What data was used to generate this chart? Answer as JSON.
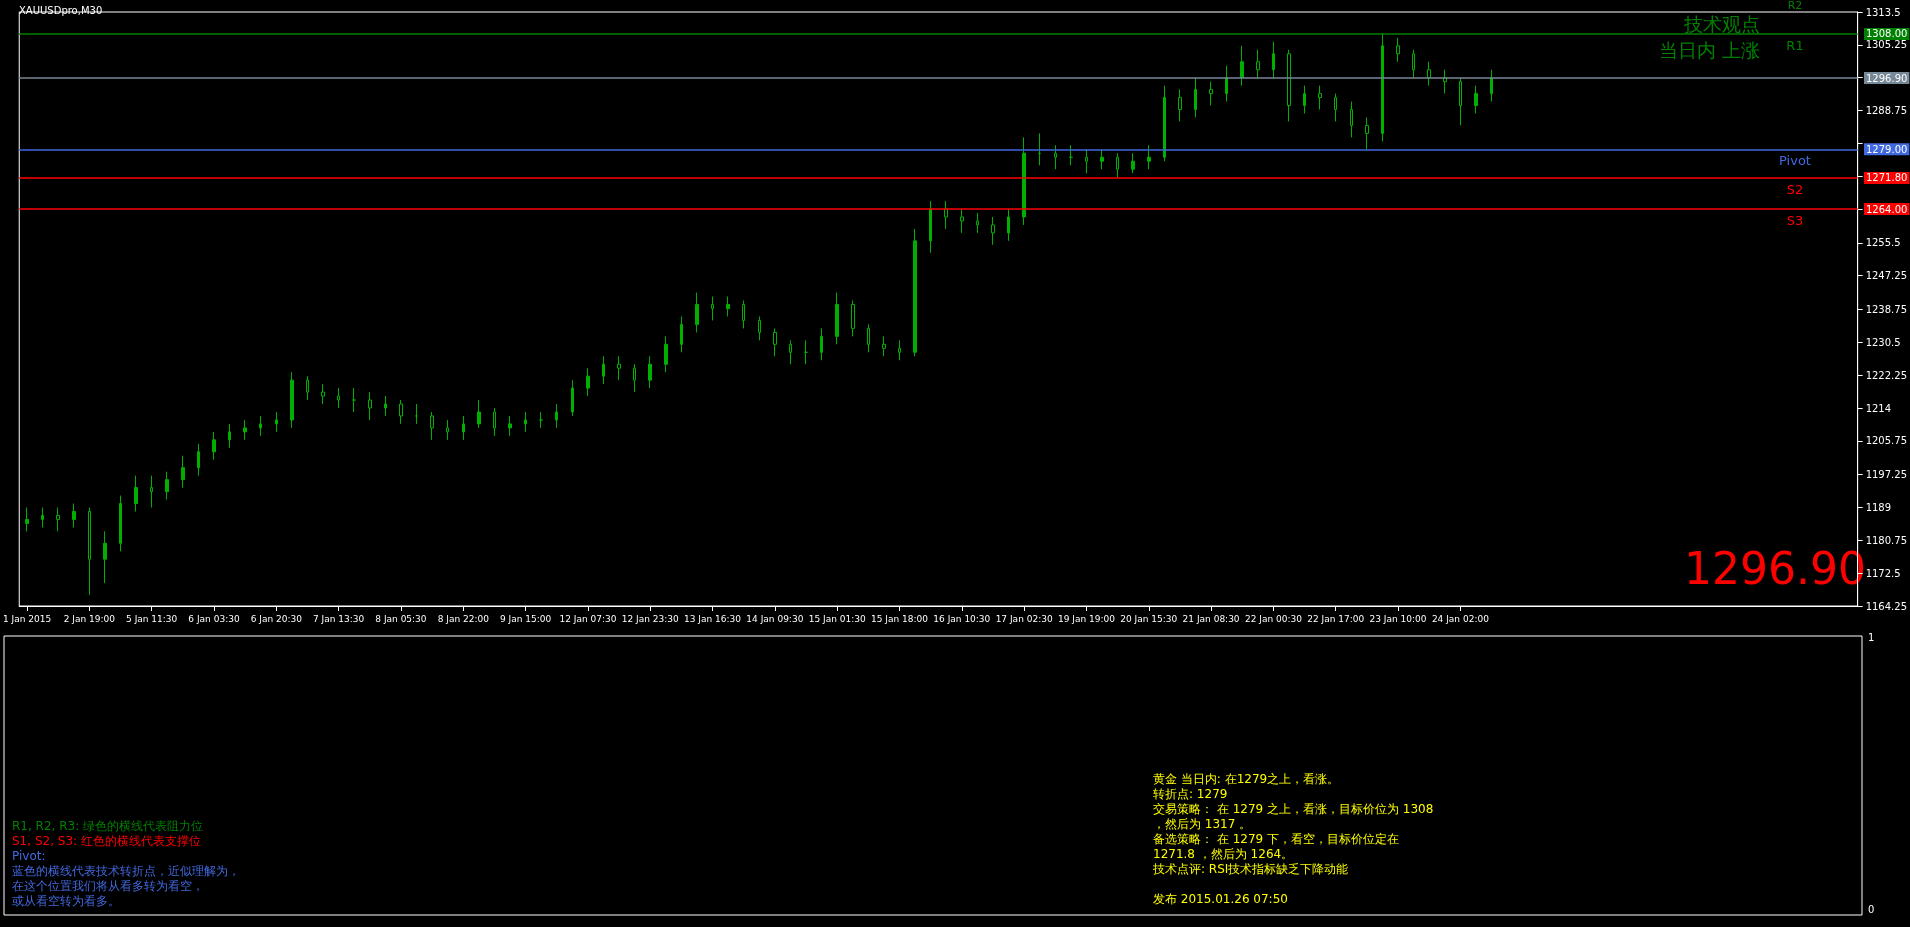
{
  "chart_data": [
    {
      "type": "candlestick",
      "title": "XAUUSDpro,M30",
      "color": "#00b000",
      "categories": [
        "1 Jan 2015",
        null,
        null,
        null,
        "2 Jan 19:00",
        null,
        null,
        null,
        "5 Jan 11:30",
        null,
        null,
        null,
        "6 Jan 03:30",
        null,
        null,
        null,
        "6 Jan 20:30",
        null,
        null,
        null,
        "7 Jan 13:30",
        null,
        null,
        null,
        "8 Jan 05:30",
        null,
        null,
        null,
        "8 Jan 22:00",
        null,
        null,
        null,
        "9 Jan 15:00",
        null,
        null,
        null,
        "12 Jan 07:30",
        null,
        null,
        null,
        "12 Jan 23:30",
        null,
        null,
        null,
        "13 Jan 16:30",
        null,
        null,
        null,
        "14 Jan 09:30",
        null,
        null,
        null,
        "15 Jan 01:30",
        null,
        null,
        null,
        "15 Jan 18:00",
        null,
        null,
        null,
        "16 Jan 10:30",
        null,
        null,
        null,
        "17 Jan 02:30",
        null,
        null,
        null,
        "19 Jan 19:00",
        null,
        null,
        null,
        "20 Jan 15:30",
        null,
        null,
        null,
        "21 Jan 08:30",
        null,
        null,
        null,
        "22 Jan 00:30",
        null,
        null,
        null,
        "22 Jan 17:00",
        null,
        null,
        null,
        "23 Jan 10:00",
        null,
        null,
        null,
        "24 Jan 02:00",
        null,
        null,
        null,
        null,
        null,
        null,
        null,
        null,
        null,
        null,
        null,
        null,
        null,
        null,
        null,
        null,
        null,
        null,
        null,
        null,
        null,
        null,
        null,
        null,
        null
      ],
      "ohlc": [
        [
          1185,
          1189,
          1183,
          1186
        ],
        [
          1186,
          1189,
          1184,
          1187
        ],
        [
          1187,
          1189,
          1183,
          1186
        ],
        [
          1186,
          1190,
          1184,
          1188
        ],
        [
          1188,
          1189,
          1167,
          1176
        ],
        [
          1176,
          1183,
          1170,
          1180
        ],
        [
          1180,
          1192,
          1178,
          1190
        ],
        [
          1190,
          1197,
          1188,
          1194
        ],
        [
          1194,
          1197,
          1189,
          1193
        ],
        [
          1193,
          1198,
          1191,
          1196
        ],
        [
          1196,
          1202,
          1194,
          1199
        ],
        [
          1199,
          1205,
          1197,
          1203
        ],
        [
          1203,
          1208,
          1201,
          1206
        ],
        [
          1206,
          1210,
          1204,
          1208
        ],
        [
          1208,
          1211,
          1206,
          1209
        ],
        [
          1209,
          1212,
          1207,
          1210
        ],
        [
          1210,
          1213,
          1208,
          1211
        ],
        [
          1211,
          1223,
          1209,
          1221
        ],
        [
          1221,
          1222,
          1216,
          1218
        ],
        [
          1218,
          1220,
          1215,
          1217
        ],
        [
          1217,
          1219,
          1214,
          1216
        ],
        [
          1216,
          1219,
          1213,
          1216
        ],
        [
          1216,
          1218,
          1211,
          1214
        ],
        [
          1214,
          1217,
          1212,
          1215
        ],
        [
          1215,
          1216,
          1210,
          1212
        ],
        [
          1212,
          1215,
          1210,
          1212
        ],
        [
          1212,
          1213,
          1206,
          1209
        ],
        [
          1209,
          1211,
          1206,
          1208
        ],
        [
          1208,
          1212,
          1206,
          1210
        ],
        [
          1210,
          1216,
          1209,
          1213
        ],
        [
          1213,
          1214,
          1207,
          1209
        ],
        [
          1209,
          1212,
          1207,
          1210
        ],
        [
          1210,
          1213,
          1208,
          1211
        ],
        [
          1211,
          1213,
          1209,
          1211
        ],
        [
          1211,
          1215,
          1209,
          1213
        ],
        [
          1213,
          1221,
          1212,
          1219
        ],
        [
          1219,
          1224,
          1217,
          1222
        ],
        [
          1222,
          1227,
          1220,
          1225
        ],
        [
          1225,
          1227,
          1221,
          1224
        ],
        [
          1224,
          1225,
          1218,
          1221
        ],
        [
          1221,
          1227,
          1219,
          1225
        ],
        [
          1225,
          1232,
          1223,
          1230
        ],
        [
          1230,
          1237,
          1228,
          1235
        ],
        [
          1235,
          1243,
          1233,
          1240
        ],
        [
          1240,
          1242,
          1236,
          1239
        ],
        [
          1239,
          1242,
          1237,
          1240
        ],
        [
          1240,
          1241,
          1234,
          1236
        ],
        [
          1236,
          1237,
          1231,
          1233
        ],
        [
          1233,
          1234,
          1227,
          1230
        ],
        [
          1230,
          1231,
          1225,
          1228
        ],
        [
          1228,
          1231,
          1225,
          1228
        ],
        [
          1228,
          1234,
          1226,
          1232
        ],
        [
          1232,
          1243,
          1230,
          1240
        ],
        [
          1240,
          1241,
          1232,
          1234
        ],
        [
          1234,
          1235,
          1228,
          1230
        ],
        [
          1230,
          1232,
          1227,
          1229
        ],
        [
          1229,
          1231,
          1226,
          1228
        ],
        [
          1228,
          1259,
          1227,
          1256
        ],
        [
          1256,
          1266,
          1253,
          1264
        ],
        [
          1264,
          1266,
          1259,
          1262
        ],
        [
          1262,
          1264,
          1258,
          1261
        ],
        [
          1261,
          1263,
          1258,
          1260
        ],
        [
          1260,
          1262,
          1255,
          1258
        ],
        [
          1258,
          1264,
          1256,
          1262
        ],
        [
          1262,
          1282,
          1260,
          1278
        ],
        [
          1278,
          1283,
          1275,
          1278
        ],
        [
          1278,
          1280,
          1274,
          1277
        ],
        [
          1277,
          1280,
          1275,
          1277
        ],
        [
          1277,
          1279,
          1273,
          1276
        ],
        [
          1276,
          1279,
          1274,
          1277
        ],
        [
          1277,
          1278,
          1272,
          1274
        ],
        [
          1274,
          1278,
          1273,
          1276
        ],
        [
          1276,
          1280,
          1274,
          1277
        ],
        [
          1277,
          1295,
          1276,
          1292
        ],
        [
          1292,
          1294,
          1286,
          1289
        ],
        [
          1289,
          1297,
          1287,
          1294
        ],
        [
          1294,
          1296,
          1290,
          1293
        ],
        [
          1293,
          1300,
          1291,
          1297
        ],
        [
          1297,
          1305,
          1295,
          1301
        ],
        [
          1301,
          1304,
          1297,
          1299
        ],
        [
          1299,
          1306,
          1297,
          1303
        ],
        [
          1303,
          1304,
          1286,
          1290
        ],
        [
          1290,
          1295,
          1288,
          1293
        ],
        [
          1293,
          1295,
          1289,
          1292
        ],
        [
          1292,
          1293,
          1286,
          1289
        ],
        [
          1289,
          1291,
          1282,
          1285
        ],
        [
          1285,
          1287,
          1279,
          1283
        ],
        [
          1283,
          1308,
          1281,
          1305
        ],
        [
          1305,
          1307,
          1301,
          1303
        ],
        [
          1303,
          1304,
          1297,
          1299
        ],
        [
          1299,
          1301,
          1295,
          1297
        ],
        [
          1297,
          1299,
          1293,
          1296
        ],
        [
          1296,
          1297,
          1285,
          1290
        ],
        [
          1290,
          1295,
          1288,
          1293
        ],
        [
          1293,
          1299,
          1291,
          1296.9
        ],
        null,
        null,
        null,
        null,
        null,
        null,
        null,
        null,
        null,
        null,
        null,
        null,
        null,
        null,
        null,
        null,
        null,
        null,
        null,
        null,
        null,
        null,
        null
      ],
      "ylim": [
        1164.25,
        1313.5
      ],
      "yticks": [
        1164.25,
        1172.5,
        1180.75,
        1189,
        1197.25,
        1205.75,
        1214,
        1222.25,
        1230.5,
        1238.75,
        1247.25,
        1255.5,
        {
          "value": 1264,
          "label": null
        },
        {
          "value": 1272.25,
          "label": null
        },
        {
          "value": 1280.5,
          "label": null
        },
        1288.75,
        {
          "value": 1297,
          "label": null
        },
        1305.25,
        1313.5
      ],
      "ref_lines": [
        {
          "axis": "y",
          "value": 1308,
          "label": "R1",
          "color": "#008000"
        },
        {
          "axis": "y",
          "value": 1296.9,
          "label": null,
          "color": "#778899"
        },
        {
          "axis": "y",
          "value": 1279,
          "label": "Pivot",
          "color": "#4169e1"
        },
        {
          "axis": "y",
          "value": 1271.8,
          "label": "S2",
          "color": "#ff0000"
        },
        {
          "axis": "y",
          "value": 1264,
          "label": "S3",
          "color": "#ff0000"
        }
      ],
      "annotations": [
        "技术观点",
        "当日内 上涨",
        "R2",
        "1296.90",
        "1308.00",
        "1296.90",
        "1279.00",
        "1271.80",
        "1264.00"
      ]
    },
    {
      "type": "other",
      "annotations": [
        "R1, R2, R3: 绿色的横线代表阻力位",
        "S1, S2, S3: 红色的横线代表支撑位",
        "Pivot:",
        "蓝色的横线代表技术转折点，近似理解为，",
        "在这个位置我们将从看多转为看空，",
        "或从看空转为看多。",
        "黄金 当日内: 在1279之上，看涨。",
        "转折点: 1279",
        "交易策略： 在 1279 之上，看涨，目标价位为 1308",
        "，然后为 1317 。",
        "备选策略： 在 1279 下，看空，目标价位定在",
        "1271.8 ，然后为 1264。",
        "技术点评: RSI技术指标缺乏下降动能",
        "发布 2015.01.26 07:50",
        "1",
        "0"
      ]
    }
  ]
}
